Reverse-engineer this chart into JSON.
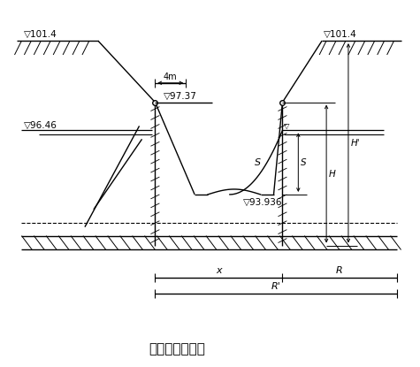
{
  "title": "涌水量计算简图",
  "bg_color": "#ffffff",
  "line_color": "#000000",
  "labels": {
    "elev_101_4_left": "▽101.4",
    "elev_101_4_right": "▽101.4",
    "elev_97_37": "▽97.37",
    "elev_96_46": "▽96.46",
    "elev_93_936": "▽93.936",
    "dim_4m": "4m",
    "label_s": "S",
    "label_h1": "H",
    "label_h2": "H'",
    "label_x": "x",
    "label_R": "R",
    "label_R2": "R'"
  }
}
